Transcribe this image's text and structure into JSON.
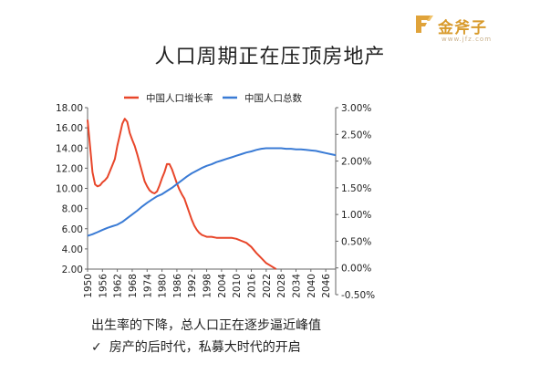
{
  "title": "人口周期正在压顶房地产",
  "logo": {
    "text": "金斧子",
    "subtext": "www.jfz.com",
    "color": "#d89a2b",
    "icon": "logo-icon"
  },
  "notes": {
    "line1": "出生率的下降，总人口正在逐步逼近峰值",
    "line2_icon": "check-icon",
    "line2": "房产的后时代，私募大时代的开启"
  },
  "chart_data": {
    "type": "line",
    "legend_position": "top",
    "grid": false,
    "x_ticks": [
      "1950",
      "1956",
      "1962",
      "1968",
      "1974",
      "1980",
      "1986",
      "1992",
      "1998",
      "2004",
      "2010",
      "2016",
      "2022",
      "2028",
      "2034",
      "2040",
      "2046"
    ],
    "xlim": [
      1950,
      2050
    ],
    "left_axis": {
      "ticks": [
        "2.00",
        "4.00",
        "6.00",
        "8.00",
        "10.00",
        "12.00",
        "14.00",
        "16.00",
        "18.00"
      ],
      "ylim": [
        2,
        18
      ]
    },
    "right_axis": {
      "ticks": [
        "-0.50%",
        "0.00%",
        "0.50%",
        "1.00%",
        "1.50%",
        "2.00%",
        "2.50%",
        "3.00%"
      ],
      "ylim": [
        -0.5,
        3.0
      ]
    },
    "series": [
      {
        "name": "中国人口增长率",
        "axis": "left",
        "color": "#e8462a",
        "points": [
          [
            1950,
            16.8
          ],
          [
            1951,
            14.2
          ],
          [
            1952,
            11.6
          ],
          [
            1953,
            10.4
          ],
          [
            1954,
            10.2
          ],
          [
            1955,
            10.3
          ],
          [
            1956,
            10.6
          ],
          [
            1957,
            10.8
          ],
          [
            1958,
            11.1
          ],
          [
            1959,
            11.7
          ],
          [
            1960,
            12.3
          ],
          [
            1961,
            12.9
          ],
          [
            1962,
            14.2
          ],
          [
            1963,
            15.3
          ],
          [
            1964,
            16.4
          ],
          [
            1965,
            16.9
          ],
          [
            1966,
            16.6
          ],
          [
            1967,
            15.5
          ],
          [
            1968,
            14.8
          ],
          [
            1969,
            14.2
          ],
          [
            1970,
            13.4
          ],
          [
            1971,
            12.5
          ],
          [
            1972,
            11.6
          ],
          [
            1973,
            10.7
          ],
          [
            1974,
            10.2
          ],
          [
            1975,
            9.8
          ],
          [
            1976,
            9.6
          ],
          [
            1977,
            9.5
          ],
          [
            1978,
            9.7
          ],
          [
            1979,
            10.3
          ],
          [
            1980,
            11.0
          ],
          [
            1981,
            11.6
          ],
          [
            1982,
            12.4
          ],
          [
            1983,
            12.4
          ],
          [
            1984,
            11.9
          ],
          [
            1985,
            11.2
          ],
          [
            1986,
            10.5
          ],
          [
            1987,
            9.9
          ],
          [
            1988,
            9.4
          ],
          [
            1989,
            9.0
          ],
          [
            1990,
            8.3
          ],
          [
            1991,
            7.6
          ],
          [
            1992,
            6.9
          ],
          [
            1993,
            6.3
          ],
          [
            1994,
            5.9
          ],
          [
            1995,
            5.6
          ],
          [
            1996,
            5.4
          ],
          [
            1997,
            5.3
          ],
          [
            1998,
            5.2
          ],
          [
            1999,
            5.2
          ],
          [
            2000,
            5.2
          ],
          [
            2002,
            5.1
          ],
          [
            2004,
            5.1
          ],
          [
            2006,
            5.1
          ],
          [
            2008,
            5.1
          ],
          [
            2010,
            5.0
          ],
          [
            2012,
            4.8
          ],
          [
            2014,
            4.6
          ],
          [
            2016,
            4.2
          ],
          [
            2018,
            3.6
          ],
          [
            2020,
            3.1
          ],
          [
            2022,
            2.6
          ],
          [
            2024,
            2.3
          ],
          [
            2026,
            2.0
          ]
        ]
      },
      {
        "name": "中国人口总数",
        "axis": "right",
        "color": "#3a7bd5",
        "points": [
          [
            1950,
            0.6
          ],
          [
            1952,
            0.63
          ],
          [
            1954,
            0.67
          ],
          [
            1956,
            0.71
          ],
          [
            1958,
            0.75
          ],
          [
            1960,
            0.78
          ],
          [
            1962,
            0.81
          ],
          [
            1964,
            0.86
          ],
          [
            1966,
            0.93
          ],
          [
            1968,
            1.0
          ],
          [
            1970,
            1.07
          ],
          [
            1972,
            1.15
          ],
          [
            1974,
            1.22
          ],
          [
            1976,
            1.28
          ],
          [
            1978,
            1.34
          ],
          [
            1980,
            1.38
          ],
          [
            1982,
            1.44
          ],
          [
            1984,
            1.5
          ],
          [
            1986,
            1.57
          ],
          [
            1988,
            1.64
          ],
          [
            1990,
            1.71
          ],
          [
            1992,
            1.77
          ],
          [
            1994,
            1.82
          ],
          [
            1996,
            1.87
          ],
          [
            1998,
            1.91
          ],
          [
            2000,
            1.94
          ],
          [
            2002,
            1.98
          ],
          [
            2004,
            2.01
          ],
          [
            2006,
            2.04
          ],
          [
            2008,
            2.07
          ],
          [
            2010,
            2.1
          ],
          [
            2012,
            2.13
          ],
          [
            2014,
            2.16
          ],
          [
            2016,
            2.18
          ],
          [
            2018,
            2.21
          ],
          [
            2020,
            2.23
          ],
          [
            2022,
            2.24
          ],
          [
            2024,
            2.24
          ],
          [
            2026,
            2.24
          ],
          [
            2028,
            2.24
          ],
          [
            2030,
            2.23
          ],
          [
            2032,
            2.23
          ],
          [
            2034,
            2.22
          ],
          [
            2036,
            2.22
          ],
          [
            2038,
            2.21
          ],
          [
            2040,
            2.2
          ],
          [
            2042,
            2.19
          ],
          [
            2044,
            2.17
          ],
          [
            2046,
            2.15
          ],
          [
            2048,
            2.13
          ],
          [
            2050,
            2.11
          ]
        ]
      }
    ]
  }
}
